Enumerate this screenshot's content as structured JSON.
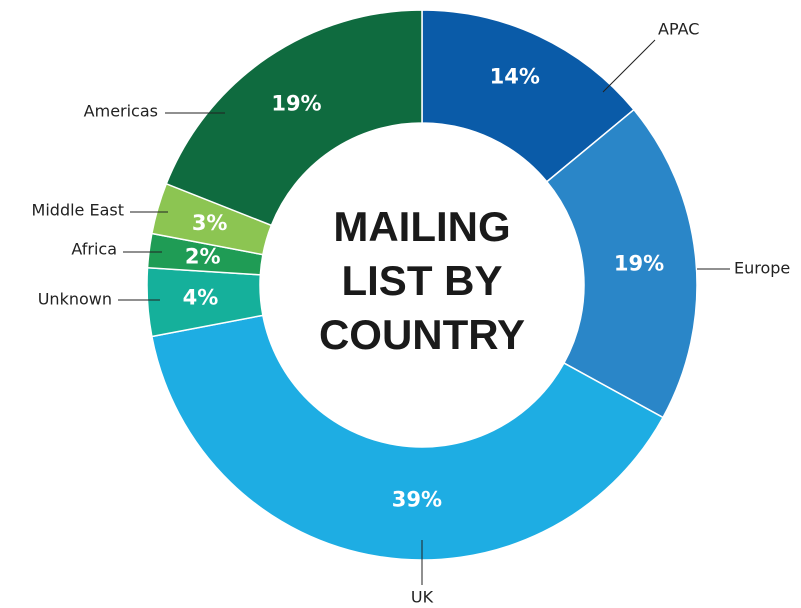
{
  "chart_data": {
    "type": "pie",
    "title": "MAILING LIST BY COUNTRY",
    "categories": [
      "APAC",
      "Europe",
      "UK",
      "Unknown",
      "Africa",
      "Middle East",
      "Americas"
    ],
    "values": [
      14,
      19,
      39,
      4,
      2,
      3,
      19
    ],
    "value_labels": [
      "14%",
      "19%",
      "39%",
      "4%",
      "2%",
      "3%",
      "19%"
    ],
    "colors": [
      "#0a5ba8",
      "#2a86c8",
      "#1eade3",
      "#15b09b",
      "#1f9c55",
      "#8cc552",
      "#0f6b3f"
    ]
  }
}
